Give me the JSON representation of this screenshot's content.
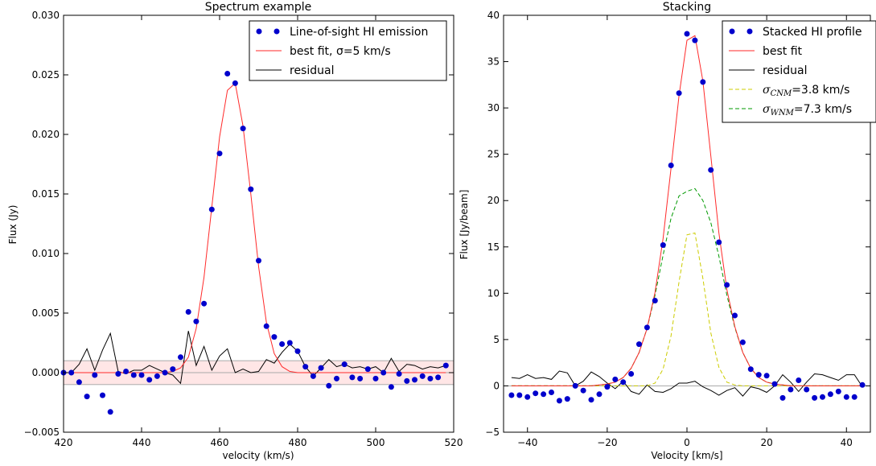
{
  "chart_data": [
    {
      "type": "line",
      "title": "Spectrum example",
      "xlabel": "velocity (km/s)",
      "ylabel": "Flux (Jy)",
      "xlim": [
        420,
        520
      ],
      "ylim": [
        -0.005,
        0.03
      ],
      "xticks": [
        "420",
        "440",
        "460",
        "480",
        "500",
        "520"
      ],
      "yticks": [
        "−0.005",
        "0.000",
        "0.005",
        "0.010",
        "0.015",
        "0.020",
        "0.025",
        "0.030"
      ],
      "grid": false,
      "legend_position": "top-right",
      "band": {
        "low": -0.001,
        "high": 0.001,
        "color": "#ffe6e6"
      },
      "colors": {
        "points": "#0000cc",
        "fit": "#ff2a2a",
        "residual": "#000000"
      },
      "series": [
        {
          "name": "Line-of-sight HI emission",
          "kind": "scatter",
          "x": [
            420,
            422,
            424,
            426,
            428,
            430,
            432,
            434,
            436,
            438,
            440,
            442,
            444,
            446,
            448,
            450,
            452,
            454,
            456,
            458,
            460,
            462,
            464,
            466,
            468,
            470,
            472,
            474,
            476,
            478,
            480,
            482,
            484,
            486,
            488,
            490,
            492,
            494,
            496,
            498,
            500,
            502,
            504,
            506,
            508,
            510,
            512,
            514,
            516,
            518
          ],
          "y": [
            0.0,
            0.0,
            -0.0008,
            -0.002,
            -0.0002,
            -0.0019,
            -0.0033,
            -0.0001,
            0.0001,
            -0.0002,
            -0.0002,
            -0.0006,
            -0.0003,
            0.0,
            0.0003,
            0.0013,
            0.0051,
            0.0043,
            0.0058,
            0.0137,
            0.0184,
            0.0251,
            0.0243,
            0.0205,
            0.0154,
            0.0094,
            0.0039,
            0.003,
            0.0024,
            0.0025,
            0.0018,
            0.0005,
            -0.0003,
            0.0004,
            -0.0011,
            -0.0005,
            0.0007,
            -0.0004,
            -0.0005,
            0.0003,
            -0.0005,
            0.0,
            -0.0012,
            -0.0001,
            -0.0007,
            -0.0006,
            -0.0003,
            -0.0005,
            -0.0004,
            0.0006
          ]
        },
        {
          "name": "best fit, σ=5 km/s",
          "kind": "line",
          "x": [
            420,
            422,
            424,
            426,
            428,
            430,
            432,
            434,
            436,
            438,
            440,
            442,
            444,
            446,
            448,
            450,
            452,
            454,
            456,
            458,
            460,
            462,
            464,
            466,
            468,
            470,
            472,
            474,
            476,
            478,
            480,
            482,
            484,
            486,
            488,
            490,
            492,
            494,
            496,
            498,
            500,
            502,
            504,
            506,
            508,
            510,
            512,
            514,
            516,
            518
          ],
          "y": [
            0.0,
            0.0,
            0.0,
            0.0,
            0.0,
            0.0,
            0.0,
            0.0,
            0.0,
            0.0,
            0.0,
            0.0,
            0.0,
            0.0,
            0.0001,
            0.0004,
            0.0013,
            0.0037,
            0.008,
            0.0139,
            0.0198,
            0.0237,
            0.0243,
            0.0207,
            0.015,
            0.0089,
            0.0042,
            0.0016,
            0.0005,
            0.0001,
            0.0,
            0.0,
            0.0,
            0.0,
            0.0,
            0.0,
            0.0,
            0.0,
            0.0,
            0.0,
            0.0,
            0.0,
            0.0,
            0.0,
            0.0,
            0.0,
            0.0,
            0.0,
            0.0,
            0.0
          ]
        },
        {
          "name": "residual",
          "kind": "line",
          "x": [
            420,
            422,
            424,
            426,
            428,
            430,
            432,
            434,
            436,
            438,
            440,
            442,
            444,
            446,
            448,
            450,
            452,
            454,
            456,
            458,
            460,
            462,
            464,
            466,
            468,
            470,
            472,
            474,
            476,
            478,
            480,
            482,
            484,
            486,
            488,
            490,
            492,
            494,
            496,
            498,
            500,
            502,
            504,
            506,
            508,
            510,
            512,
            514,
            516,
            518
          ],
          "y": [
            0.0,
            0.0,
            0.0007,
            0.002,
            0.0002,
            0.0019,
            0.0033,
            0.0001,
            -0.0001,
            0.0002,
            0.0002,
            0.0006,
            0.0003,
            0.0,
            -0.0002,
            -0.0009,
            0.0035,
            0.0006,
            0.0022,
            0.0002,
            0.0014,
            0.002,
            0.0,
            0.0003,
            0.0,
            0.0001,
            0.0011,
            0.0008,
            0.0017,
            0.0024,
            0.0018,
            0.0005,
            -0.0003,
            0.0004,
            0.0011,
            0.0005,
            0.0007,
            0.0004,
            0.0005,
            0.0003,
            0.0005,
            0.0,
            0.0012,
            0.0001,
            0.0007,
            0.0006,
            0.0003,
            0.0005,
            0.0004,
            0.0006
          ]
        }
      ]
    },
    {
      "type": "line",
      "title": "Stacking",
      "xlabel": "Velocity [km/s]",
      "ylabel": "Flux [Jy/beam]",
      "xlim": [
        -46,
        46
      ],
      "ylim": [
        -5,
        40
      ],
      "xticks": [
        "−40",
        "−20",
        "0",
        "20",
        "40"
      ],
      "xtick_values": [
        -40,
        -20,
        0,
        20,
        40
      ],
      "yticks": [
        "−5",
        "0",
        "5",
        "10",
        "15",
        "20",
        "25",
        "30",
        "35",
        "40"
      ],
      "grid": false,
      "legend_position": "top-right",
      "colors": {
        "points": "#0000cc",
        "fit": "#ff2a2a",
        "residual": "#000000",
        "cnm": "#cccc00",
        "wnm": "#009900"
      },
      "series": [
        {
          "name": "Stacked HI profile",
          "kind": "scatter",
          "x": [
            -44,
            -42,
            -40,
            -38,
            -36,
            -34,
            -32,
            -30,
            -28,
            -26,
            -24,
            -22,
            -20,
            -18,
            -16,
            -14,
            -12,
            -10,
            -8,
            -6,
            -4,
            -2,
            0,
            2,
            4,
            6,
            8,
            10,
            12,
            14,
            16,
            18,
            20,
            22,
            24,
            26,
            28,
            30,
            32,
            34,
            36,
            38,
            40,
            42,
            44
          ],
          "y": [
            -1.0,
            -1.0,
            -1.2,
            -0.8,
            -0.9,
            -0.7,
            -1.6,
            -1.4,
            0.0,
            -0.5,
            -1.5,
            -0.9,
            -0.1,
            0.7,
            0.4,
            1.3,
            4.5,
            6.3,
            9.2,
            15.2,
            23.8,
            31.6,
            38.0,
            37.3,
            32.8,
            23.3,
            15.5,
            10.9,
            7.6,
            4.7,
            1.8,
            1.2,
            1.1,
            0.2,
            -1.3,
            -0.4,
            0.6,
            -0.4,
            -1.3,
            -1.2,
            -0.9,
            -0.6,
            -1.2,
            -1.2,
            0.1
          ]
        },
        {
          "name": "best fit",
          "kind": "line",
          "x": [
            -44,
            -42,
            -40,
            -38,
            -36,
            -34,
            -32,
            -30,
            -28,
            -26,
            -24,
            -22,
            -20,
            -18,
            -16,
            -14,
            -12,
            -10,
            -8,
            -6,
            -4,
            -2,
            0,
            2,
            4,
            6,
            8,
            10,
            12,
            14,
            16,
            18,
            20,
            22,
            24,
            26,
            28,
            30,
            32,
            34,
            36,
            38,
            40,
            42,
            44
          ],
          "y": [
            0,
            0,
            0,
            0,
            0,
            0,
            0,
            0,
            0,
            0,
            0,
            0.1,
            0.2,
            0.4,
            0.9,
            1.9,
            3.6,
            6.2,
            10.1,
            15.9,
            23.5,
            31.3,
            37.3,
            37.8,
            32.9,
            24.8,
            16.5,
            10.4,
            6.4,
            3.6,
            1.9,
            0.9,
            0.4,
            0.2,
            0.1,
            0,
            0,
            0,
            0,
            0,
            0,
            0,
            0,
            0,
            0
          ]
        },
        {
          "name": "residual",
          "kind": "line",
          "x": [
            -44,
            -42,
            -40,
            -38,
            -36,
            -34,
            -32,
            -30,
            -28,
            -26,
            -24,
            -22,
            -20,
            -18,
            -16,
            -14,
            -12,
            -10,
            -8,
            -6,
            -4,
            -2,
            0,
            2,
            4,
            6,
            8,
            10,
            12,
            14,
            16,
            18,
            20,
            22,
            24,
            26,
            28,
            30,
            32,
            34,
            36,
            38,
            40,
            42,
            44
          ],
          "y": [
            0.9,
            0.8,
            1.2,
            0.8,
            0.9,
            0.7,
            1.6,
            1.4,
            0.0,
            0.5,
            1.5,
            1.0,
            0.3,
            -0.3,
            0.5,
            -0.6,
            -0.9,
            0.1,
            -0.6,
            -0.7,
            -0.3,
            0.3,
            0.3,
            0.5,
            -0.1,
            -0.5,
            -1.0,
            -0.5,
            -0.2,
            -1.1,
            -0.1,
            -0.3,
            -0.7,
            0.0,
            1.2,
            0.4,
            -0.6,
            0.4,
            1.3,
            1.2,
            0.9,
            0.6,
            1.2,
            1.2,
            -0.1
          ]
        },
        {
          "name": "σ",
          "name_sub": "CNM",
          "name_rest": "=3.8 km/s",
          "kind": "dashed",
          "x": [
            -44,
            -42,
            -40,
            -38,
            -36,
            -34,
            -32,
            -30,
            -28,
            -26,
            -24,
            -22,
            -20,
            -18,
            -16,
            -14,
            -12,
            -10,
            -8,
            -6,
            -4,
            -2,
            0,
            2,
            4,
            6,
            8,
            10,
            12,
            14,
            16,
            18,
            20,
            22,
            24,
            26,
            28,
            30,
            32,
            34,
            36,
            38,
            40,
            42,
            44
          ],
          "y": [
            0,
            0,
            0,
            0,
            0,
            0,
            0,
            0,
            0,
            0,
            0,
            0,
            0,
            0,
            0,
            0,
            0,
            0,
            0.3,
            1.8,
            5.4,
            11.2,
            16.3,
            16.5,
            11.6,
            5.7,
            2.0,
            0.4,
            0.1,
            0,
            0,
            0,
            0,
            0,
            0,
            0,
            0,
            0,
            0,
            0,
            0,
            0,
            0,
            0,
            0
          ]
        },
        {
          "name": "σ",
          "name_sub": "WNM",
          "name_rest": "=7.3 km/s",
          "kind": "dashed",
          "x": [
            -44,
            -42,
            -40,
            -38,
            -36,
            -34,
            -32,
            -30,
            -28,
            -26,
            -24,
            -22,
            -20,
            -18,
            -16,
            -14,
            -12,
            -10,
            -8,
            -6,
            -4,
            -2,
            0,
            2,
            4,
            6,
            8,
            10,
            12,
            14,
            16,
            18,
            20,
            22,
            24,
            26,
            28,
            30,
            32,
            34,
            36,
            38,
            40,
            42,
            44
          ],
          "y": [
            0,
            0,
            0,
            0,
            0,
            0,
            0,
            0,
            0,
            0,
            0,
            0.1,
            0.2,
            0.4,
            0.9,
            1.9,
            3.6,
            6.2,
            9.8,
            14.1,
            18.1,
            20.5,
            21.0,
            21.3,
            20.0,
            17.6,
            14.0,
            9.8,
            6.3,
            3.6,
            1.9,
            0.9,
            0.4,
            0.2,
            0.1,
            0,
            0,
            0,
            0,
            0,
            0,
            0,
            0,
            0,
            0
          ]
        }
      ]
    }
  ]
}
